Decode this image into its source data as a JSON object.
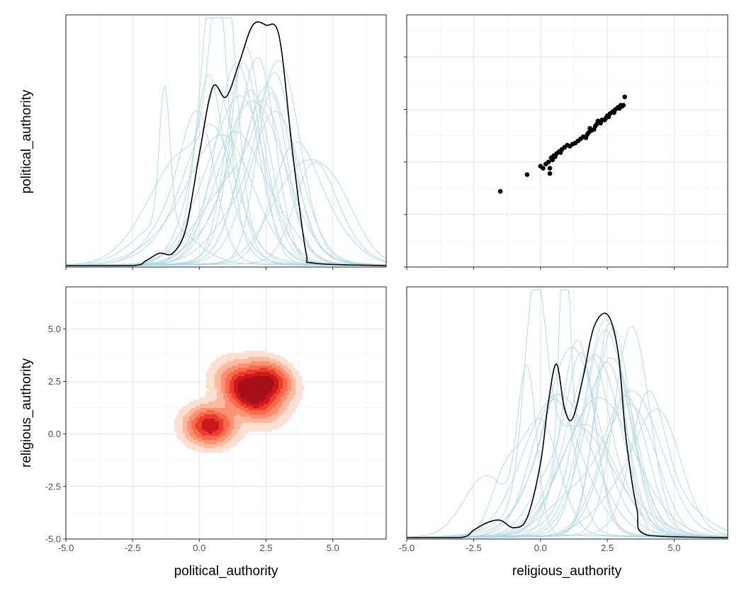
{
  "chart_data": {
    "type": "pairs_matrix",
    "variables": [
      "political_authority",
      "religious_authority"
    ],
    "colors": {
      "posterior_lines": "#add8e6",
      "observed_line": "#000000",
      "points": "#000000",
      "density_fill": [
        "#fee0d2",
        "#fcbba1",
        "#fc9272",
        "#fb6a4a",
        "#ef3b2c",
        "#cb181d",
        "#a50f15"
      ]
    },
    "panels": [
      {
        "position": "top-left",
        "type": "density_overlay",
        "xlabel": "",
        "ylabel": "political_authority",
        "xlim": [
          -5.0,
          7.0
        ],
        "observed_density": [
          [
            -5.0,
            0
          ],
          [
            -2.5,
            0.0
          ],
          [
            -2.0,
            0.02
          ],
          [
            -1.5,
            0.05
          ],
          [
            -1.0,
            0.05
          ],
          [
            -0.5,
            0.15
          ],
          [
            0.0,
            0.45
          ],
          [
            0.5,
            0.72
          ],
          [
            1.0,
            0.68
          ],
          [
            1.5,
            0.82
          ],
          [
            2.0,
            0.97
          ],
          [
            2.5,
            0.97
          ],
          [
            3.0,
            0.92
          ],
          [
            3.5,
            0.45
          ],
          [
            4.0,
            0.05
          ],
          [
            4.3,
            0.01
          ],
          [
            7.0,
            0
          ]
        ],
        "replicate_peaks": [
          [
            -1.3,
            0.2,
            0.55
          ],
          [
            0.0,
            0.6,
            0.5
          ],
          [
            0.9,
            0.45,
            1.0
          ],
          [
            0.6,
            0.4,
            0.84
          ],
          [
            1.5,
            0.6,
            0.65
          ],
          [
            2.0,
            0.7,
            0.6
          ],
          [
            2.5,
            0.9,
            0.58
          ],
          [
            3.1,
            0.7,
            0.63
          ],
          [
            1.8,
            0.8,
            0.55
          ],
          [
            2.3,
            0.6,
            0.7
          ],
          [
            0.3,
            0.5,
            0.65
          ],
          [
            1.2,
            0.9,
            0.52
          ],
          [
            2.8,
            1.0,
            0.5
          ],
          [
            4.2,
            0.7,
            0.35
          ],
          [
            1.0,
            1.1,
            0.45
          ],
          [
            3.5,
            0.8,
            0.45
          ],
          [
            1.7,
            0.5,
            0.62
          ],
          [
            2.6,
            0.55,
            0.58
          ],
          [
            0.7,
            0.7,
            0.6
          ],
          [
            2.1,
            1.2,
            0.47
          ],
          [
            3.8,
            1.1,
            0.4
          ],
          [
            1.4,
            0.7,
            0.55
          ],
          [
            2.4,
            0.8,
            0.52
          ],
          [
            0.5,
            0.9,
            0.48
          ],
          [
            2.9,
            0.6,
            0.55
          ]
        ]
      },
      {
        "position": "top-right",
        "type": "scatter",
        "xlim": [
          -5.0,
          7.0
        ],
        "ylim": [
          -5.0,
          7.0
        ],
        "points": [
          [
            -1.5,
            -1.4
          ],
          [
            -0.5,
            -0.6
          ],
          [
            0.0,
            -0.2
          ],
          [
            0.1,
            -0.3
          ],
          [
            0.2,
            -0.1
          ],
          [
            0.3,
            0.0
          ],
          [
            0.35,
            -0.55
          ],
          [
            0.4,
            0.2
          ],
          [
            0.45,
            0.1
          ],
          [
            0.5,
            0.3
          ],
          [
            0.55,
            0.25
          ],
          [
            0.6,
            0.4
          ],
          [
            0.7,
            0.5
          ],
          [
            0.75,
            0.45
          ],
          [
            0.8,
            0.6
          ],
          [
            0.9,
            0.7
          ],
          [
            1.0,
            0.8
          ],
          [
            1.1,
            0.75
          ],
          [
            1.3,
            0.9
          ],
          [
            1.4,
            1.0
          ],
          [
            1.5,
            1.1
          ],
          [
            1.6,
            1.2
          ],
          [
            1.7,
            1.15
          ],
          [
            1.75,
            1.3
          ],
          [
            1.8,
            1.4
          ],
          [
            1.85,
            1.6
          ],
          [
            1.9,
            1.5
          ],
          [
            2.0,
            1.55
          ],
          [
            2.05,
            1.7
          ],
          [
            2.1,
            1.8
          ],
          [
            2.2,
            1.9
          ],
          [
            2.25,
            1.85
          ],
          [
            2.3,
            2.0
          ],
          [
            2.4,
            2.0
          ],
          [
            2.45,
            2.1
          ],
          [
            2.5,
            2.2
          ],
          [
            2.55,
            2.15
          ],
          [
            2.6,
            2.3
          ],
          [
            2.7,
            2.4
          ],
          [
            2.75,
            2.35
          ],
          [
            2.8,
            2.5
          ],
          [
            2.9,
            2.6
          ],
          [
            2.95,
            2.55
          ],
          [
            3.0,
            2.7
          ],
          [
            3.05,
            2.65
          ],
          [
            3.1,
            2.7
          ],
          [
            3.15,
            3.1
          ],
          [
            0.35,
            -0.3
          ],
          [
            1.2,
            0.85
          ],
          [
            2.15,
            1.95
          ]
        ]
      },
      {
        "position": "bottom-left",
        "type": "density2d_filled",
        "xlabel": "political_authority",
        "ylabel": "religious_authority",
        "xlim": [
          -5.0,
          7.0
        ],
        "ylim": [
          -5.0,
          7.0
        ],
        "xticks": [
          "-5.0",
          "-2.5",
          "0.0",
          "2.5",
          "5.0"
        ],
        "yticks": [
          "-5.0",
          "-2.5",
          "0.0",
          "2.5",
          "5.0"
        ],
        "modes": [
          [
            0.4,
            0.4,
            0.75,
            0.55,
            0.55
          ],
          [
            1.9,
            2.0,
            1.0,
            0.55,
            0.8
          ],
          [
            2.7,
            2.6,
            0.6,
            0.45,
            0.6
          ]
        ]
      },
      {
        "position": "bottom-right",
        "type": "density_overlay",
        "xlabel": "religious_authority",
        "ylabel": "",
        "xlim": [
          -5.0,
          7.0
        ],
        "xticks": [
          "-5.0",
          "-2.5",
          "0.0",
          "2.5",
          "5.0"
        ],
        "observed_density": [
          [
            -5.0,
            0
          ],
          [
            -3.0,
            0.0
          ],
          [
            -2.5,
            0.03
          ],
          [
            -2.0,
            0.06
          ],
          [
            -1.5,
            0.07
          ],
          [
            -1.0,
            0.04
          ],
          [
            -0.5,
            0.08
          ],
          [
            0.0,
            0.3
          ],
          [
            0.3,
            0.55
          ],
          [
            0.6,
            0.7
          ],
          [
            0.9,
            0.52
          ],
          [
            1.2,
            0.48
          ],
          [
            1.6,
            0.65
          ],
          [
            2.0,
            0.85
          ],
          [
            2.5,
            0.9
          ],
          [
            2.9,
            0.75
          ],
          [
            3.2,
            0.4
          ],
          [
            3.6,
            0.12
          ],
          [
            4.0,
            0.01
          ],
          [
            7.0,
            0
          ]
        ],
        "replicate_peaks": [
          [
            -0.2,
            0.4,
            0.8
          ],
          [
            0.9,
            0.18,
            1.0
          ],
          [
            -0.5,
            0.35,
            0.64
          ],
          [
            1.6,
            0.5,
            0.6
          ],
          [
            2.2,
            0.7,
            0.62
          ],
          [
            2.8,
            0.8,
            0.7
          ],
          [
            3.5,
            0.7,
            0.56
          ],
          [
            1.2,
            0.9,
            0.55
          ],
          [
            2.5,
            1.0,
            0.6
          ],
          [
            0.4,
            0.8,
            0.55
          ],
          [
            4.5,
            0.8,
            0.4
          ],
          [
            1.9,
            0.6,
            0.58
          ],
          [
            3.1,
            0.9,
            0.52
          ],
          [
            0.0,
            0.7,
            0.5
          ],
          [
            2.0,
            1.2,
            0.48
          ],
          [
            1.4,
            0.65,
            0.62
          ],
          [
            2.6,
            0.55,
            0.66
          ],
          [
            3.8,
            1.0,
            0.45
          ],
          [
            0.7,
            0.6,
            0.58
          ],
          [
            2.3,
            0.85,
            0.55
          ],
          [
            1.0,
            1.1,
            0.5
          ],
          [
            3.3,
            0.75,
            0.5
          ],
          [
            1.7,
            0.95,
            0.53
          ],
          [
            4.0,
            0.6,
            0.48
          ],
          [
            2.9,
            0.65,
            0.6
          ]
        ]
      }
    ],
    "grid": true
  }
}
